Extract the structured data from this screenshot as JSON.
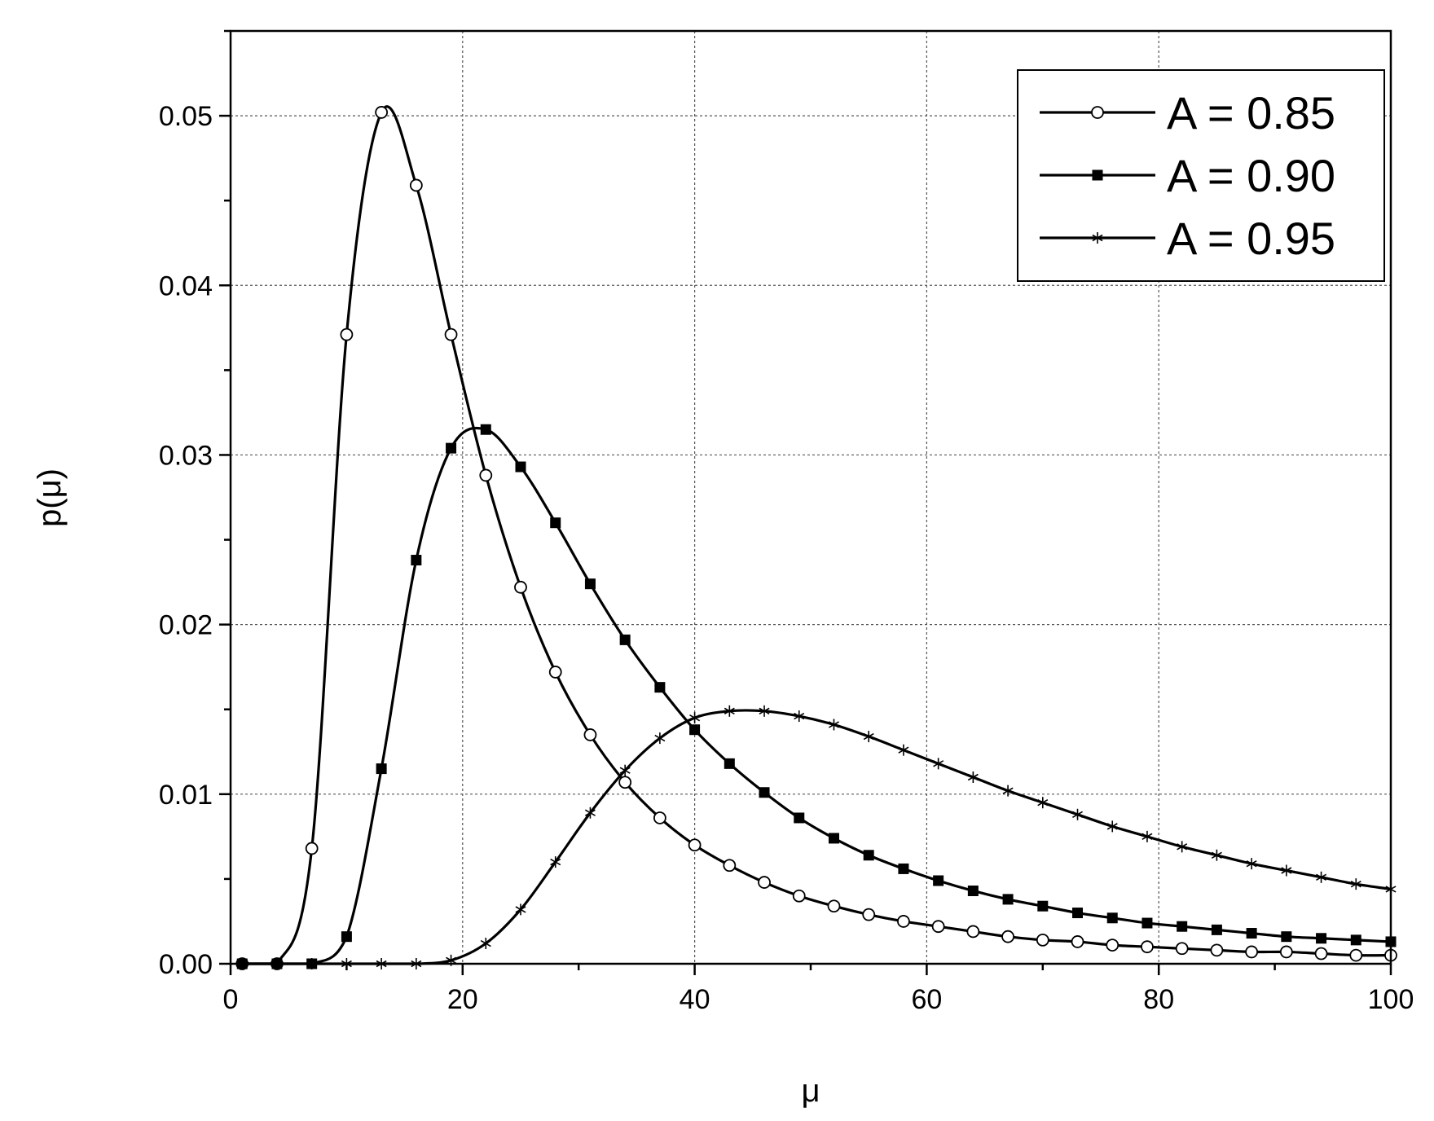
{
  "chart_data": {
    "type": "line",
    "title": "",
    "xlabel": "μ",
    "ylabel": "p(μ)",
    "xlim": [
      0,
      100
    ],
    "ylim": [
      0,
      0.055
    ],
    "x_ticks": [
      0,
      20,
      40,
      60,
      80,
      100
    ],
    "x_tick_labels": [
      "0",
      "20",
      "40",
      "60",
      "80",
      "100"
    ],
    "y_ticks": [
      0,
      0.01,
      0.02,
      0.03,
      0.04,
      0.05
    ],
    "y_tick_labels": [
      "0.00",
      "0.01",
      "0.02",
      "0.03",
      "0.04",
      "0.05"
    ],
    "grid": true,
    "legend_position": "top-right",
    "series": [
      {
        "name": "A = 0.85",
        "marker": "open-circle",
        "color": "#000000",
        "x": [
          1,
          4,
          7,
          10,
          13,
          16,
          19,
          22,
          25,
          28,
          31,
          34,
          37,
          40,
          43,
          46,
          49,
          52,
          55,
          58,
          61,
          64,
          67,
          70,
          73,
          76,
          79,
          82,
          85,
          88,
          91,
          94,
          97,
          100
        ],
        "y": [
          0.0,
          0.0,
          0.0068,
          0.0371,
          0.0502,
          0.0459,
          0.0371,
          0.0288,
          0.0222,
          0.0172,
          0.0135,
          0.0107,
          0.0086,
          0.007,
          0.0058,
          0.0048,
          0.004,
          0.0034,
          0.0029,
          0.0025,
          0.0022,
          0.0019,
          0.0016,
          0.0014,
          0.0013,
          0.0011,
          0.001,
          0.0009,
          0.0008,
          0.0007,
          0.0007,
          0.0006,
          0.0005,
          0.0005
        ]
      },
      {
        "name": "A = 0.90",
        "marker": "filled-square",
        "color": "#000000",
        "x": [
          1,
          4,
          7,
          10,
          13,
          16,
          19,
          22,
          25,
          28,
          31,
          34,
          37,
          40,
          43,
          46,
          49,
          52,
          55,
          58,
          61,
          64,
          67,
          70,
          73,
          76,
          79,
          82,
          85,
          88,
          91,
          94,
          97,
          100
        ],
        "y": [
          0.0,
          0.0,
          0.0,
          0.0016,
          0.0115,
          0.0238,
          0.0304,
          0.0315,
          0.0293,
          0.026,
          0.0224,
          0.0191,
          0.0163,
          0.0138,
          0.0118,
          0.0101,
          0.0086,
          0.0074,
          0.0064,
          0.0056,
          0.0049,
          0.0043,
          0.0038,
          0.0034,
          0.003,
          0.0027,
          0.0024,
          0.0022,
          0.002,
          0.0018,
          0.0016,
          0.0015,
          0.0014,
          0.0013
        ]
      },
      {
        "name": "A = 0.95",
        "marker": "asterisk",
        "color": "#000000",
        "x": [
          1,
          4,
          7,
          10,
          13,
          16,
          19,
          22,
          25,
          28,
          31,
          34,
          37,
          40,
          43,
          46,
          49,
          52,
          55,
          58,
          61,
          64,
          67,
          70,
          73,
          76,
          79,
          82,
          85,
          88,
          91,
          94,
          97,
          100
        ],
        "y": [
          0.0,
          0.0,
          0.0,
          0.0,
          0.0,
          0.0,
          0.0002,
          0.0012,
          0.0032,
          0.006,
          0.0089,
          0.0114,
          0.0133,
          0.0145,
          0.0149,
          0.0149,
          0.0146,
          0.0141,
          0.0134,
          0.0126,
          0.0118,
          0.011,
          0.0102,
          0.0095,
          0.0088,
          0.0081,
          0.0075,
          0.0069,
          0.0064,
          0.0059,
          0.0055,
          0.0051,
          0.0047,
          0.0044
        ]
      }
    ]
  }
}
